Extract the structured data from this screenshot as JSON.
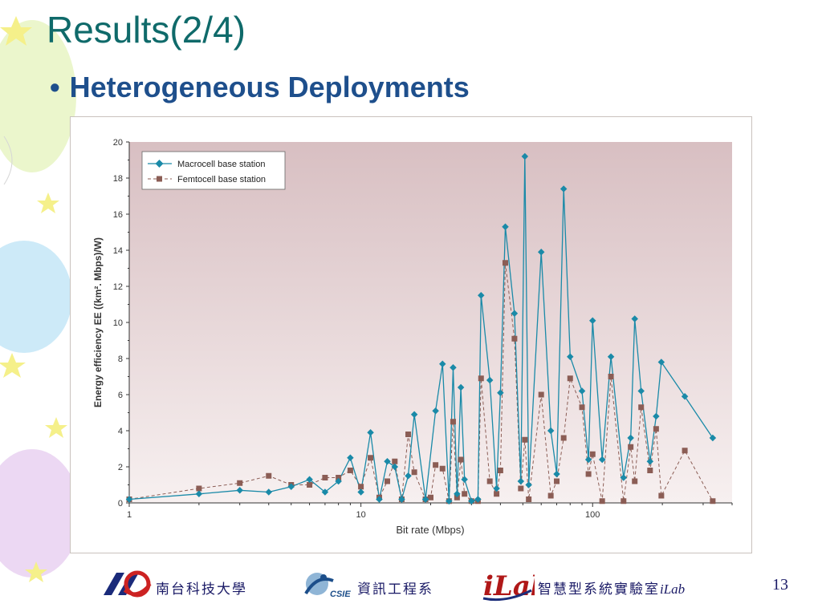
{
  "slide": {
    "title": "Results(2/4)",
    "bullet": "•",
    "subtitle": "Heterogeneous Deployments",
    "page_number": "13"
  },
  "footer": {
    "university": "南台科技大學",
    "department": "資訊工程系",
    "csie_logo_text": "CSIE",
    "ilab_logo_text": "iLab",
    "lab_name": "智慧型系統實驗室",
    "lab_suffix": "iLab"
  },
  "colors": {
    "title": "#0f6a6a",
    "subtitle": "#1e4f8c",
    "macro": "#1a8aa8",
    "femto": "#8b5d55",
    "plot_bg_top": "#d8bfc2",
    "plot_bg_bottom": "#f7f0f0"
  },
  "chart_data": {
    "type": "line",
    "xscale": "log",
    "xlim": [
      1,
      400
    ],
    "ylim": [
      0,
      20
    ],
    "xlabel": "Bit rate (Mbps)",
    "ylabel": "Energy efficiency EE ((km². Mbps)/W)",
    "xticks": [
      "1",
      "10",
      "100"
    ],
    "yticks": [
      "0",
      "2",
      "4",
      "6",
      "8",
      "10",
      "12",
      "14",
      "16",
      "18",
      "20"
    ],
    "legend_position": "top-left",
    "grid": false,
    "series": [
      {
        "name": "Macrocell base station",
        "style": "solid-diamond",
        "points": [
          [
            1,
            0.2
          ],
          [
            2,
            0.5
          ],
          [
            3,
            0.7
          ],
          [
            4,
            0.6
          ],
          [
            5,
            0.9
          ],
          [
            6,
            1.3
          ],
          [
            7,
            0.6
          ],
          [
            8,
            1.2
          ],
          [
            9,
            2.5
          ],
          [
            10,
            0.6
          ],
          [
            11,
            3.9
          ],
          [
            12,
            0.2
          ],
          [
            13,
            2.3
          ],
          [
            14,
            2.0
          ],
          [
            15,
            0.2
          ],
          [
            16,
            1.5
          ],
          [
            17,
            4.9
          ],
          [
            19,
            0.2
          ],
          [
            21,
            5.1
          ],
          [
            22.5,
            7.7
          ],
          [
            24,
            0.1
          ],
          [
            25,
            7.5
          ],
          [
            26,
            0.5
          ],
          [
            27,
            6.4
          ],
          [
            28,
            1.3
          ],
          [
            30,
            0.1
          ],
          [
            32,
            0.2
          ],
          [
            33,
            11.5
          ],
          [
            36,
            6.8
          ],
          [
            38.5,
            0.8
          ],
          [
            40,
            6.1
          ],
          [
            42,
            15.3
          ],
          [
            46,
            10.5
          ],
          [
            49,
            1.2
          ],
          [
            51,
            19.2
          ],
          [
            53,
            1.0
          ],
          [
            60,
            13.9
          ],
          [
            66,
            4.0
          ],
          [
            70,
            1.6
          ],
          [
            75,
            17.4
          ],
          [
            80,
            8.1
          ],
          [
            90,
            6.2
          ],
          [
            96,
            2.4
          ],
          [
            100,
            10.1
          ],
          [
            110,
            2.4
          ],
          [
            120,
            8.1
          ],
          [
            136,
            1.4
          ],
          [
            146,
            3.6
          ],
          [
            152,
            10.2
          ],
          [
            162,
            6.2
          ],
          [
            177,
            2.3
          ],
          [
            188,
            4.8
          ],
          [
            198,
            7.8
          ],
          [
            250,
            5.9
          ],
          [
            330,
            3.6
          ]
        ]
      },
      {
        "name": "Femtocell base station",
        "style": "dashed-square",
        "points": [
          [
            1,
            0.2
          ],
          [
            2,
            0.8
          ],
          [
            3,
            1.1
          ],
          [
            4,
            1.5
          ],
          [
            5,
            1.0
          ],
          [
            6,
            1.0
          ],
          [
            7,
            1.4
          ],
          [
            8,
            1.4
          ],
          [
            9,
            1.8
          ],
          [
            10,
            0.9
          ],
          [
            11,
            2.5
          ],
          [
            12,
            0.3
          ],
          [
            13,
            1.2
          ],
          [
            14,
            2.3
          ],
          [
            15,
            0.2
          ],
          [
            16,
            3.8
          ],
          [
            17,
            1.7
          ],
          [
            19,
            0.2
          ],
          [
            20,
            0.3
          ],
          [
            21,
            2.1
          ],
          [
            22.5,
            1.9
          ],
          [
            24,
            0.1
          ],
          [
            25,
            4.5
          ],
          [
            26,
            0.3
          ],
          [
            27,
            2.4
          ],
          [
            28,
            0.5
          ],
          [
            30,
            0.1
          ],
          [
            32,
            0.1
          ],
          [
            33,
            6.9
          ],
          [
            36,
            1.2
          ],
          [
            38.5,
            0.5
          ],
          [
            40,
            1.8
          ],
          [
            42,
            13.3
          ],
          [
            46,
            9.1
          ],
          [
            49,
            0.8
          ],
          [
            51,
            3.5
          ],
          [
            53,
            0.2
          ],
          [
            60,
            6.0
          ],
          [
            66,
            0.4
          ],
          [
            70,
            1.2
          ],
          [
            75,
            3.6
          ],
          [
            80,
            6.9
          ],
          [
            90,
            5.3
          ],
          [
            96,
            1.6
          ],
          [
            100,
            2.7
          ],
          [
            110,
            0.1
          ],
          [
            120,
            7.0
          ],
          [
            136,
            0.1
          ],
          [
            146,
            3.1
          ],
          [
            152,
            1.2
          ],
          [
            162,
            5.3
          ],
          [
            177,
            1.8
          ],
          [
            188,
            4.1
          ],
          [
            198,
            0.4
          ],
          [
            250,
            2.9
          ],
          [
            330,
            0.1
          ]
        ]
      }
    ]
  }
}
